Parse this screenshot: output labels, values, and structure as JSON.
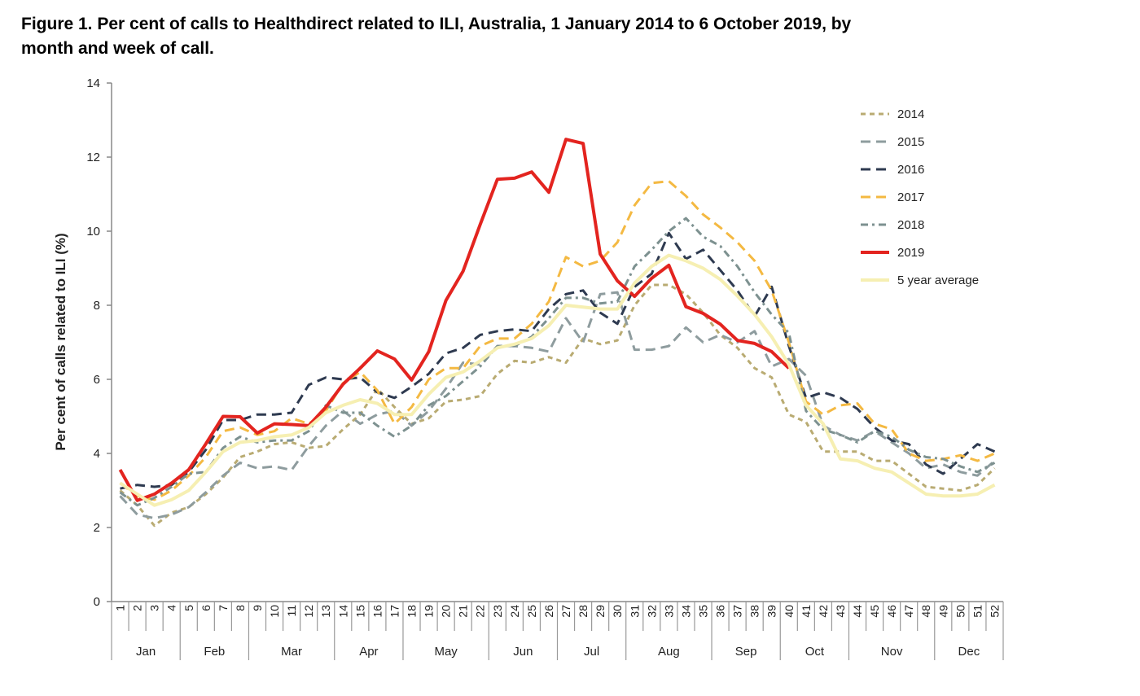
{
  "chart_data": {
    "type": "line",
    "title": "Figure 1. Per cent of calls to Healthdirect related to ILI, Australia, 1 January 2014 to 6 October 2019, by month and week of call.",
    "ylabel": "Per cent of calls related to ILI (%)",
    "categories": [
      "1",
      "2",
      "3",
      "4",
      "5",
      "6",
      "7",
      "8",
      "9",
      "10",
      "11",
      "12",
      "13",
      "14",
      "15",
      "16",
      "17",
      "18",
      "19",
      "20",
      "21",
      "22",
      "23",
      "24",
      "25",
      "26",
      "27",
      "28",
      "29",
      "30",
      "31",
      "32",
      "33",
      "34",
      "35",
      "36",
      "37",
      "38",
      "39",
      "40",
      "41",
      "42",
      "43",
      "44",
      "45",
      "46",
      "47",
      "48",
      "49",
      "50",
      "51",
      "52"
    ],
    "months": [
      {
        "label": "Jan",
        "weeks": 4
      },
      {
        "label": "Feb",
        "weeks": 4
      },
      {
        "label": "Mar",
        "weeks": 5
      },
      {
        "label": "Apr",
        "weeks": 4
      },
      {
        "label": "May",
        "weeks": 5
      },
      {
        "label": "Jun",
        "weeks": 4
      },
      {
        "label": "Jul",
        "weeks": 4
      },
      {
        "label": "Aug",
        "weeks": 5
      },
      {
        "label": "Sep",
        "weeks": 4
      },
      {
        "label": "Oct",
        "weeks": 4
      },
      {
        "label": "Nov",
        "weeks": 5
      },
      {
        "label": "Dec",
        "weeks": 4
      }
    ],
    "ylim": [
      0,
      14
    ],
    "yticks": [
      0,
      2,
      4,
      6,
      8,
      10,
      12,
      14
    ],
    "legend": "upper right",
    "series": [
      {
        "name": "2014",
        "color": "#b9ab72",
        "dash": "dotted",
        "values": [
          3.0,
          2.6,
          2.05,
          2.4,
          2.55,
          2.9,
          3.35,
          3.9,
          4.05,
          4.25,
          4.3,
          4.15,
          4.2,
          4.65,
          5.05,
          5.75,
          5.25,
          4.8,
          4.95,
          5.4,
          5.45,
          5.55,
          6.15,
          6.5,
          6.45,
          6.6,
          6.45,
          7.1,
          6.95,
          7.05,
          8.0,
          8.55,
          8.55,
          8.3,
          7.8,
          7.2,
          6.85,
          6.3,
          6.05,
          5.05,
          4.85,
          4.05,
          4.05,
          4.05,
          3.8,
          3.8,
          3.45,
          3.1,
          3.05,
          3.0,
          3.15,
          3.6
        ]
      },
      {
        "name": "2015",
        "color": "#8e9c9e",
        "dash": "dashed",
        "values": [
          2.85,
          2.35,
          2.25,
          2.35,
          2.55,
          2.95,
          3.4,
          3.75,
          3.6,
          3.65,
          3.55,
          4.2,
          4.75,
          5.15,
          4.8,
          5.05,
          5.15,
          4.75,
          5.15,
          5.75,
          6.45,
          6.4,
          6.9,
          6.9,
          6.85,
          6.75,
          7.65,
          7.0,
          8.3,
          8.35,
          6.8,
          6.8,
          6.9,
          7.4,
          7.0,
          7.2,
          7.0,
          7.3,
          6.35,
          6.55,
          6.1,
          4.75,
          4.5,
          4.35,
          4.6,
          4.3,
          4.0,
          3.6,
          3.7,
          3.5,
          3.4,
          3.8
        ]
      },
      {
        "name": "2016",
        "color": "#2e3a50",
        "dash": "dashed",
        "values": [
          3.05,
          3.15,
          3.1,
          3.15,
          3.5,
          4.1,
          4.9,
          4.9,
          5.05,
          5.05,
          5.1,
          5.85,
          6.05,
          6.0,
          6.05,
          5.65,
          5.5,
          5.8,
          6.15,
          6.7,
          6.85,
          7.2,
          7.3,
          7.35,
          7.3,
          7.9,
          8.3,
          8.4,
          7.8,
          7.5,
          8.5,
          8.85,
          9.95,
          9.25,
          9.5,
          8.95,
          8.4,
          7.7,
          8.5,
          6.9,
          5.5,
          5.65,
          5.5,
          5.2,
          4.7,
          4.35,
          4.25,
          3.7,
          3.45,
          3.85,
          4.25,
          4.05
        ]
      },
      {
        "name": "2017",
        "color": "#f4b942",
        "dash": "dashed",
        "values": [
          3.2,
          2.85,
          2.75,
          3.0,
          3.4,
          3.9,
          4.6,
          4.7,
          4.5,
          4.6,
          4.95,
          4.8,
          5.15,
          5.9,
          6.2,
          5.7,
          4.8,
          5.25,
          6.0,
          6.3,
          6.3,
          6.9,
          7.1,
          7.1,
          7.5,
          8.1,
          9.3,
          9.05,
          9.2,
          9.7,
          10.7,
          11.3,
          11.35,
          10.95,
          10.45,
          10.1,
          9.7,
          9.2,
          8.4,
          7.0,
          5.4,
          5.05,
          5.3,
          5.35,
          4.8,
          4.65,
          4.0,
          3.8,
          3.85,
          3.95,
          3.8,
          4.0
        ]
      },
      {
        "name": "2018",
        "color": "#7d9190",
        "dash": "dashdot",
        "values": [
          2.95,
          2.6,
          2.8,
          3.1,
          3.45,
          3.5,
          4.15,
          4.45,
          4.3,
          4.35,
          4.35,
          4.6,
          5.3,
          5.1,
          5.1,
          4.75,
          4.45,
          4.75,
          5.3,
          5.55,
          5.95,
          6.35,
          6.9,
          6.9,
          7.15,
          7.65,
          8.2,
          8.2,
          8.05,
          8.1,
          9.05,
          9.5,
          10.0,
          10.35,
          9.85,
          9.6,
          9.05,
          8.35,
          7.75,
          7.25,
          5.15,
          4.65,
          4.5,
          4.3,
          4.6,
          4.45,
          4.1,
          3.9,
          3.85,
          3.65,
          3.5,
          3.75
        ]
      },
      {
        "name": "2019",
        "color": "#e3241f",
        "dash": "solid",
        "values": [
          3.56,
          2.73,
          2.9,
          3.2,
          3.56,
          4.26,
          5.0,
          4.99,
          4.55,
          4.8,
          4.78,
          4.75,
          5.25,
          5.87,
          6.3,
          6.77,
          6.55,
          5.98,
          6.75,
          8.13,
          8.92,
          10.18,
          11.4,
          11.43,
          11.6,
          11.05,
          12.48,
          12.37,
          9.38,
          8.66,
          8.24,
          8.73,
          9.08,
          7.96,
          7.78,
          7.49,
          7.05,
          6.97,
          6.75,
          6.3,
          null,
          null,
          null,
          null,
          null,
          null,
          null,
          null,
          null,
          null,
          null,
          null
        ]
      },
      {
        "name": "5 year average",
        "color": "#f6efb2",
        "dash": "solid",
        "values": [
          3.2,
          2.9,
          2.6,
          2.75,
          3.0,
          3.5,
          4.05,
          4.3,
          4.35,
          4.45,
          4.5,
          4.7,
          5.1,
          5.3,
          5.45,
          5.35,
          5.05,
          5.05,
          5.6,
          6.05,
          6.2,
          6.5,
          6.85,
          6.95,
          7.1,
          7.45,
          8.0,
          7.95,
          7.9,
          7.9,
          8.6,
          9.05,
          9.35,
          9.2,
          9.0,
          8.7,
          8.25,
          7.75,
          7.15,
          6.4,
          5.3,
          4.8,
          3.85,
          3.8,
          3.6,
          3.5,
          3.2,
          2.9,
          2.85,
          2.85,
          2.9,
          3.15
        ]
      }
    ]
  }
}
